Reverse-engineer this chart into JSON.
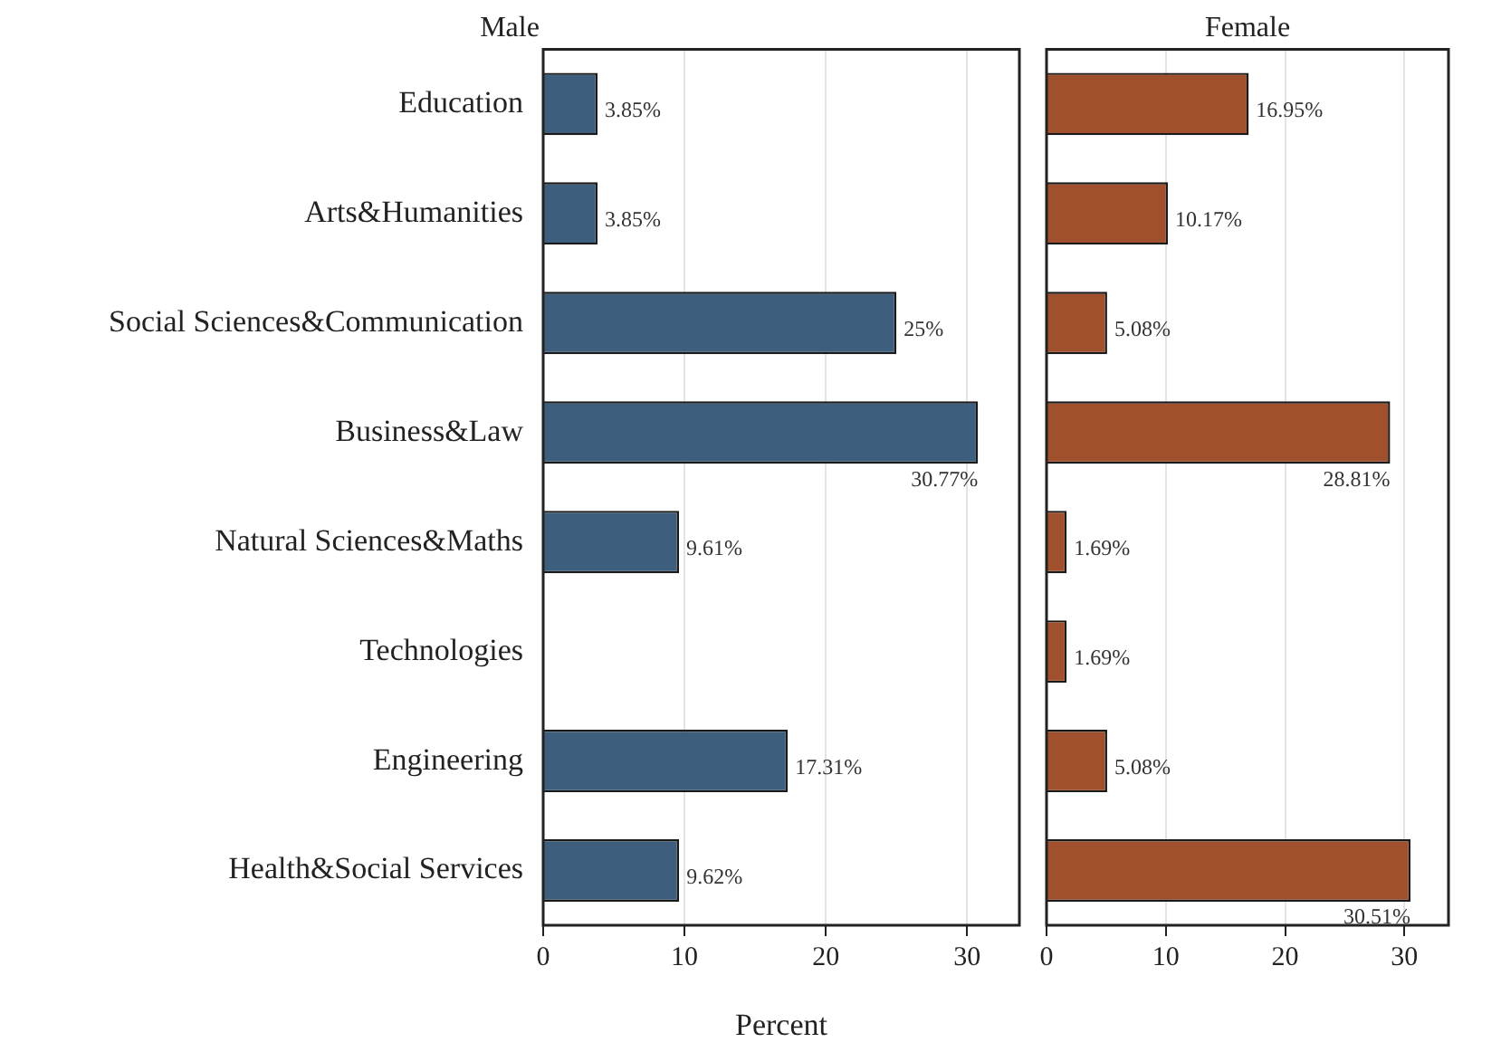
{
  "chart_data": [
    {
      "type": "bar",
      "orientation": "horizontal",
      "title": "Male",
      "xlabel": "Percent",
      "categories": [
        "Education",
        "Arts&Humanities",
        "Social Sciences&Communication",
        "Business&Law",
        "Natural Sciences&Maths",
        "Technologies",
        "Engineering",
        "Health&Social Services"
      ],
      "values": [
        3.85,
        3.85,
        25,
        30.77,
        9.61,
        null,
        17.31,
        9.62
      ],
      "value_labels": [
        "3.85%",
        "3.85%",
        "25%",
        "30.77%",
        "9.61%",
        null,
        "17.31%",
        "9.62%"
      ],
      "color": "#3d5f7d",
      "xlim": [
        0,
        33.7
      ],
      "xticks": [
        0,
        10,
        20,
        30
      ],
      "grid": "x"
    },
    {
      "type": "bar",
      "orientation": "horizontal",
      "title": "Female",
      "categories": [
        null,
        null,
        null,
        null,
        null,
        null,
        null,
        null
      ],
      "values": [
        16.95,
        10.17,
        5.08,
        28.81,
        1.69,
        1.69,
        5.08,
        30.51
      ],
      "value_labels": [
        "16.95%",
        "10.17%",
        "5.08%",
        "28.81%",
        "1.69%",
        "1.69%",
        "5.08%",
        "30.51%"
      ],
      "color": "#a0502c",
      "xlim": [
        0,
        33.7
      ],
      "xticks": [
        0,
        10,
        20,
        30
      ],
      "grid": "x",
      "tick_labels": "x"
    }
  ]
}
